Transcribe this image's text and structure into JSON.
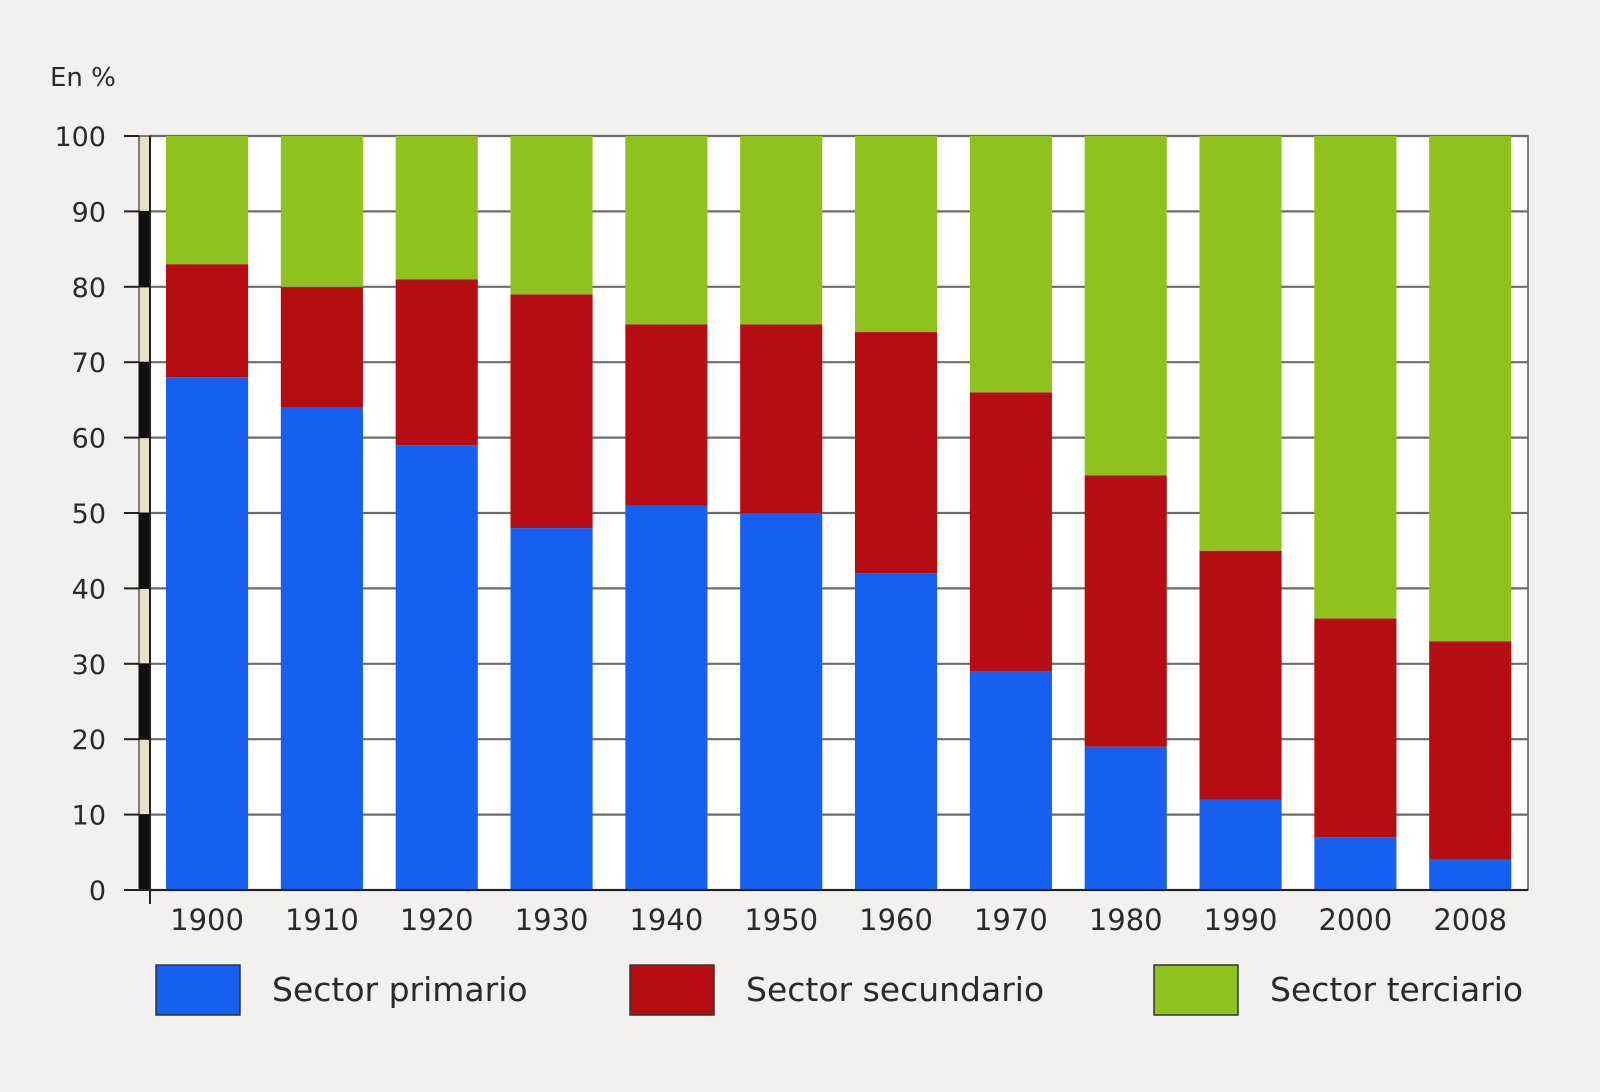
{
  "chart_data": {
    "type": "bar",
    "stacked": true,
    "ylabel": "En %",
    "ylim": [
      0,
      100
    ],
    "yticks": [
      0,
      10,
      20,
      30,
      40,
      50,
      60,
      70,
      80,
      90,
      100
    ],
    "grid": true,
    "legend_position": "bottom",
    "categories": [
      "1900",
      "1910",
      "1920",
      "1930",
      "1940",
      "1950",
      "1960",
      "1970",
      "1980",
      "1990",
      "2000",
      "2008"
    ],
    "series": [
      {
        "name": "Sector primario",
        "color": "#1560f0",
        "values": [
          68,
          64,
          59,
          48,
          51,
          50,
          42,
          29,
          19,
          12,
          7,
          4
        ]
      },
      {
        "name": "Sector secundario",
        "color": "#b50d12",
        "values": [
          15,
          16,
          22,
          31,
          24,
          25,
          32,
          37,
          36,
          33,
          29,
          29
        ]
      },
      {
        "name": "Sector terciario",
        "color": "#8fc21d",
        "values": [
          17,
          20,
          19,
          21,
          25,
          25,
          26,
          34,
          45,
          55,
          64,
          67
        ]
      }
    ]
  }
}
